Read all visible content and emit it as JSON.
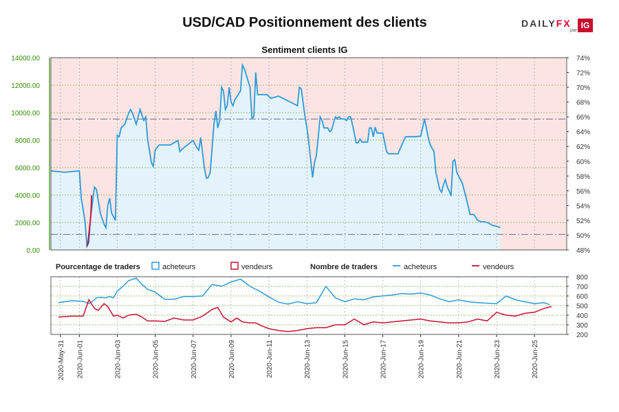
{
  "header": {
    "title": "USD/CAD Positionnement des clients",
    "logo_word_a": "DAILY",
    "logo_word_b": "FX",
    "logo_par": "par",
    "logo_ig": "IG"
  },
  "colors": {
    "buyers": "#2a9ad8",
    "sellers": "#c8102e",
    "sentiment_line": "#2a9ad8",
    "area_fill": "#e4f3fb",
    "bg_fill": "#fde4e4",
    "left_axis": "#2e8b00",
    "right_axis": "#333333"
  },
  "chart_data": [
    {
      "type": "area",
      "title": "Sentiment clients IG",
      "y_left_ticks": [
        "0.00",
        "2000.00",
        "4000.00",
        "6000.00",
        "8000.00",
        "10000.00",
        "12000.00",
        "14000.00"
      ],
      "y_right_ticks": [
        "48%",
        "50%",
        "52%",
        "54%",
        "56%",
        "58%",
        "60%",
        "62%",
        "64%",
        "66%",
        "68%",
        "70%",
        "72%",
        "74%"
      ],
      "y_right_range": [
        48,
        74
      ],
      "x_range_days": [
        -0.5,
        26.7
      ],
      "x_tick_labels": [
        "2020-May-31",
        "2020-Jun-01",
        "2020-Jun-03",
        "2020-Jun-05",
        "2020-Jun-07",
        "2020-Jun-09",
        "2020-Jun-11",
        "2020-Jun-13",
        "2020-Jun-15",
        "2020-Jun-17",
        "2020-Jun-19",
        "2020-Jun-21",
        "2020-Jun-23",
        "2020-Jun-25"
      ],
      "x_tick_days": [
        0,
        1,
        3,
        5,
        7,
        9,
        11,
        13,
        15,
        17,
        19,
        21,
        23,
        25
      ],
      "reference_lines_pct": [
        50.1,
        65.7
      ],
      "series": [
        {
          "name": "acheteurs",
          "points": [
            [
              -0.5,
              58.7
            ],
            [
              0.2,
              58.5
            ],
            [
              1.0,
              58.7
            ],
            [
              1.1,
              55.0
            ],
            [
              1.3,
              51.9
            ],
            [
              1.4,
              48.5
            ],
            [
              1.5,
              49.0
            ],
            [
              1.6,
              52.5
            ],
            [
              1.8,
              56.5
            ],
            [
              1.9,
              56.2
            ],
            [
              2.1,
              53.0
            ],
            [
              2.3,
              51.5
            ],
            [
              2.4,
              51.0
            ],
            [
              2.5,
              54.0
            ],
            [
              2.6,
              55.0
            ],
            [
              2.7,
              53.0
            ],
            [
              2.9,
              52.0
            ],
            [
              3.0,
              63.5
            ],
            [
              3.1,
              63.3
            ],
            [
              3.2,
              64.5
            ],
            [
              3.4,
              65.0
            ],
            [
              3.6,
              66.5
            ],
            [
              3.7,
              67.0
            ],
            [
              3.8,
              66.5
            ],
            [
              4.0,
              65.0
            ],
            [
              4.2,
              67.0
            ],
            [
              4.4,
              65.5
            ],
            [
              4.5,
              66.0
            ],
            [
              4.6,
              63.0
            ],
            [
              4.8,
              59.8
            ],
            [
              4.9,
              59.3
            ],
            [
              5.0,
              61.5
            ],
            [
              5.2,
              62.2
            ],
            [
              5.5,
              62.2
            ],
            [
              5.8,
              62.2
            ],
            [
              6.0,
              62.5
            ],
            [
              6.2,
              62.8
            ],
            [
              6.3,
              61.3
            ],
            [
              6.5,
              61.8
            ],
            [
              7.0,
              62.8
            ],
            [
              7.2,
              61.8
            ],
            [
              7.3,
              61.5
            ],
            [
              7.4,
              63.2
            ],
            [
              7.6,
              59.0
            ],
            [
              7.7,
              57.7
            ],
            [
              7.8,
              57.8
            ],
            [
              7.9,
              58.5
            ],
            [
              8.1,
              65.0
            ],
            [
              8.2,
              66.8
            ],
            [
              8.3,
              64.5
            ],
            [
              8.4,
              65.5
            ],
            [
              8.5,
              70.0
            ],
            [
              8.6,
              69.5
            ],
            [
              8.7,
              67.0
            ],
            [
              8.8,
              67.5
            ],
            [
              8.9,
              70.0
            ],
            [
              9.0,
              68.0
            ],
            [
              9.1,
              67.5
            ],
            [
              9.2,
              68.3
            ],
            [
              9.5,
              69.5
            ],
            [
              9.6,
              73.0
            ],
            [
              9.7,
              72.5
            ],
            [
              10.0,
              70.0
            ],
            [
              10.1,
              65.8
            ],
            [
              10.2,
              66.0
            ],
            [
              10.3,
              72.0
            ],
            [
              10.4,
              69.0
            ],
            [
              10.6,
              69.0
            ],
            [
              10.9,
              69.0
            ],
            [
              11.1,
              68.5
            ],
            [
              11.5,
              68.8
            ],
            [
              12.5,
              67.5
            ],
            [
              12.6,
              70.0
            ],
            [
              12.7,
              69.8
            ],
            [
              12.9,
              66.0
            ],
            [
              13.0,
              64.5
            ],
            [
              13.1,
              62.5
            ],
            [
              13.3,
              57.8
            ],
            [
              13.4,
              59.8
            ],
            [
              13.5,
              60.8
            ],
            [
              13.6,
              63.3
            ],
            [
              13.7,
              66.0
            ],
            [
              13.8,
              65.5
            ],
            [
              13.9,
              64.5
            ],
            [
              14.1,
              64.5
            ],
            [
              14.2,
              64.0
            ],
            [
              14.3,
              64.2
            ],
            [
              14.5,
              66.0
            ],
            [
              14.6,
              65.8
            ],
            [
              14.7,
              66.0
            ],
            [
              14.8,
              65.7
            ],
            [
              15.0,
              65.7
            ],
            [
              15.1,
              65.5
            ],
            [
              15.2,
              66.0
            ],
            [
              15.3,
              66.0
            ],
            [
              15.4,
              65.0
            ],
            [
              15.6,
              62.5
            ],
            [
              15.7,
              62.5
            ],
            [
              15.8,
              63.0
            ],
            [
              15.9,
              62.6
            ],
            [
              16.2,
              62.6
            ],
            [
              16.3,
              64.5
            ],
            [
              16.4,
              64.5
            ],
            [
              16.5,
              63.3
            ],
            [
              16.6,
              64.6
            ],
            [
              16.7,
              63.8
            ],
            [
              17.0,
              63.8
            ],
            [
              17.2,
              61.3
            ],
            [
              17.3,
              61.0
            ],
            [
              17.8,
              61.0
            ],
            [
              18.2,
              63.3
            ],
            [
              18.4,
              63.3
            ],
            [
              18.7,
              63.3
            ],
            [
              19.0,
              63.4
            ],
            [
              19.1,
              64.5
            ],
            [
              19.2,
              65.7
            ],
            [
              19.4,
              63.2
            ],
            [
              19.5,
              62.2
            ],
            [
              19.7,
              61.3
            ],
            [
              19.8,
              58.5
            ],
            [
              20.0,
              56.2
            ],
            [
              20.1,
              55.8
            ],
            [
              20.2,
              56.8
            ],
            [
              20.3,
              57.5
            ],
            [
              20.4,
              56.5
            ],
            [
              20.5,
              56.0
            ],
            [
              20.6,
              55.3
            ],
            [
              20.7,
              60.0
            ],
            [
              20.8,
              60.2
            ],
            [
              20.9,
              58.5
            ],
            [
              21.0,
              58.0
            ],
            [
              21.2,
              57.0
            ],
            [
              21.4,
              55.0
            ],
            [
              21.6,
              52.8
            ],
            [
              21.8,
              52.8
            ],
            [
              22.0,
              52.0
            ],
            [
              22.2,
              51.8
            ],
            [
              22.4,
              51.8
            ],
            [
              22.6,
              51.6
            ],
            [
              22.8,
              51.3
            ],
            [
              23.0,
              51.2
            ],
            [
              23.2,
              51.0
            ]
          ]
        }
      ]
    },
    {
      "type": "line",
      "title": "Nombre de traders",
      "y_ticks": [
        200,
        300,
        400,
        500,
        600,
        700,
        800
      ],
      "y_range": [
        200,
        800
      ],
      "legend": {
        "label_pct": "Pourcentage de traders",
        "label_count": "Nombre de traders",
        "buyers_label": "acheteurs",
        "sellers_label": "vendeurs"
      },
      "series": [
        {
          "name": "acheteurs",
          "points": [
            [
              -0.1,
              530
            ],
            [
              0.6,
              550
            ],
            [
              1.2,
              545
            ],
            [
              1.5,
              520
            ],
            [
              1.7,
              545
            ],
            [
              1.9,
              580
            ],
            [
              2.1,
              585
            ],
            [
              2.4,
              580
            ],
            [
              2.6,
              595
            ],
            [
              2.8,
              580
            ],
            [
              3.0,
              650
            ],
            [
              3.3,
              700
            ],
            [
              3.6,
              760
            ],
            [
              4.0,
              785
            ],
            [
              4.3,
              720
            ],
            [
              4.6,
              670
            ],
            [
              5.0,
              640
            ],
            [
              5.5,
              565
            ],
            [
              6.0,
              565
            ],
            [
              6.5,
              595
            ],
            [
              7.0,
              595
            ],
            [
              7.5,
              600
            ],
            [
              8.0,
              720
            ],
            [
              8.5,
              700
            ],
            [
              9.0,
              745
            ],
            [
              9.5,
              775
            ],
            [
              10.0,
              700
            ],
            [
              10.5,
              650
            ],
            [
              11.0,
              590
            ],
            [
              11.5,
              535
            ],
            [
              12.0,
              515
            ],
            [
              12.5,
              540
            ],
            [
              13.0,
              520
            ],
            [
              13.5,
              530
            ],
            [
              14.0,
              700
            ],
            [
              14.5,
              580
            ],
            [
              15.0,
              540
            ],
            [
              15.5,
              570
            ],
            [
              16.0,
              560
            ],
            [
              16.5,
              590
            ],
            [
              17.0,
              600
            ],
            [
              17.5,
              610
            ],
            [
              18.0,
              625
            ],
            [
              18.5,
              620
            ],
            [
              19.0,
              630
            ],
            [
              19.5,
              610
            ],
            [
              20.0,
              570
            ],
            [
              20.5,
              540
            ],
            [
              21.0,
              560
            ],
            [
              21.5,
              540
            ],
            [
              22.0,
              530
            ],
            [
              22.5,
              525
            ],
            [
              23.0,
              520
            ],
            [
              23.5,
              600
            ],
            [
              24.0,
              560
            ],
            [
              24.5,
              540
            ],
            [
              25.0,
              520
            ],
            [
              25.5,
              530
            ],
            [
              25.8,
              510
            ]
          ]
        },
        {
          "name": "vendeurs",
          "points": [
            [
              -0.1,
              380
            ],
            [
              0.6,
              390
            ],
            [
              1.2,
              390
            ],
            [
              1.5,
              560
            ],
            [
              1.8,
              470
            ],
            [
              2.0,
              450
            ],
            [
              2.3,
              520
            ],
            [
              2.5,
              490
            ],
            [
              2.8,
              390
            ],
            [
              3.0,
              400
            ],
            [
              3.3,
              370
            ],
            [
              3.6,
              400
            ],
            [
              4.0,
              410
            ],
            [
              4.3,
              380
            ],
            [
              4.6,
              340
            ],
            [
              5.0,
              340
            ],
            [
              5.5,
              335
            ],
            [
              6.0,
              370
            ],
            [
              6.5,
              350
            ],
            [
              7.0,
              350
            ],
            [
              7.5,
              390
            ],
            [
              8.0,
              460
            ],
            [
              8.3,
              480
            ],
            [
              8.6,
              380
            ],
            [
              9.0,
              330
            ],
            [
              9.3,
              370
            ],
            [
              9.6,
              330
            ],
            [
              10.0,
              320
            ],
            [
              10.3,
              320
            ],
            [
              10.6,
              290
            ],
            [
              11.0,
              260
            ],
            [
              11.5,
              240
            ],
            [
              12.0,
              230
            ],
            [
              12.5,
              240
            ],
            [
              13.0,
              260
            ],
            [
              13.5,
              270
            ],
            [
              14.0,
              270
            ],
            [
              14.5,
              300
            ],
            [
              15.0,
              300
            ],
            [
              15.5,
              360
            ],
            [
              16.0,
              300
            ],
            [
              16.5,
              330
            ],
            [
              17.0,
              320
            ],
            [
              17.5,
              330
            ],
            [
              18.0,
              340
            ],
            [
              18.5,
              350
            ],
            [
              19.0,
              360
            ],
            [
              19.5,
              340
            ],
            [
              20.0,
              330
            ],
            [
              20.5,
              320
            ],
            [
              21.0,
              320
            ],
            [
              21.5,
              330
            ],
            [
              22.0,
              360
            ],
            [
              22.5,
              340
            ],
            [
              23.0,
              430
            ],
            [
              23.5,
              400
            ],
            [
              24.0,
              390
            ],
            [
              24.5,
              420
            ],
            [
              25.0,
              430
            ],
            [
              25.5,
              470
            ],
            [
              25.9,
              490
            ]
          ]
        }
      ]
    }
  ]
}
